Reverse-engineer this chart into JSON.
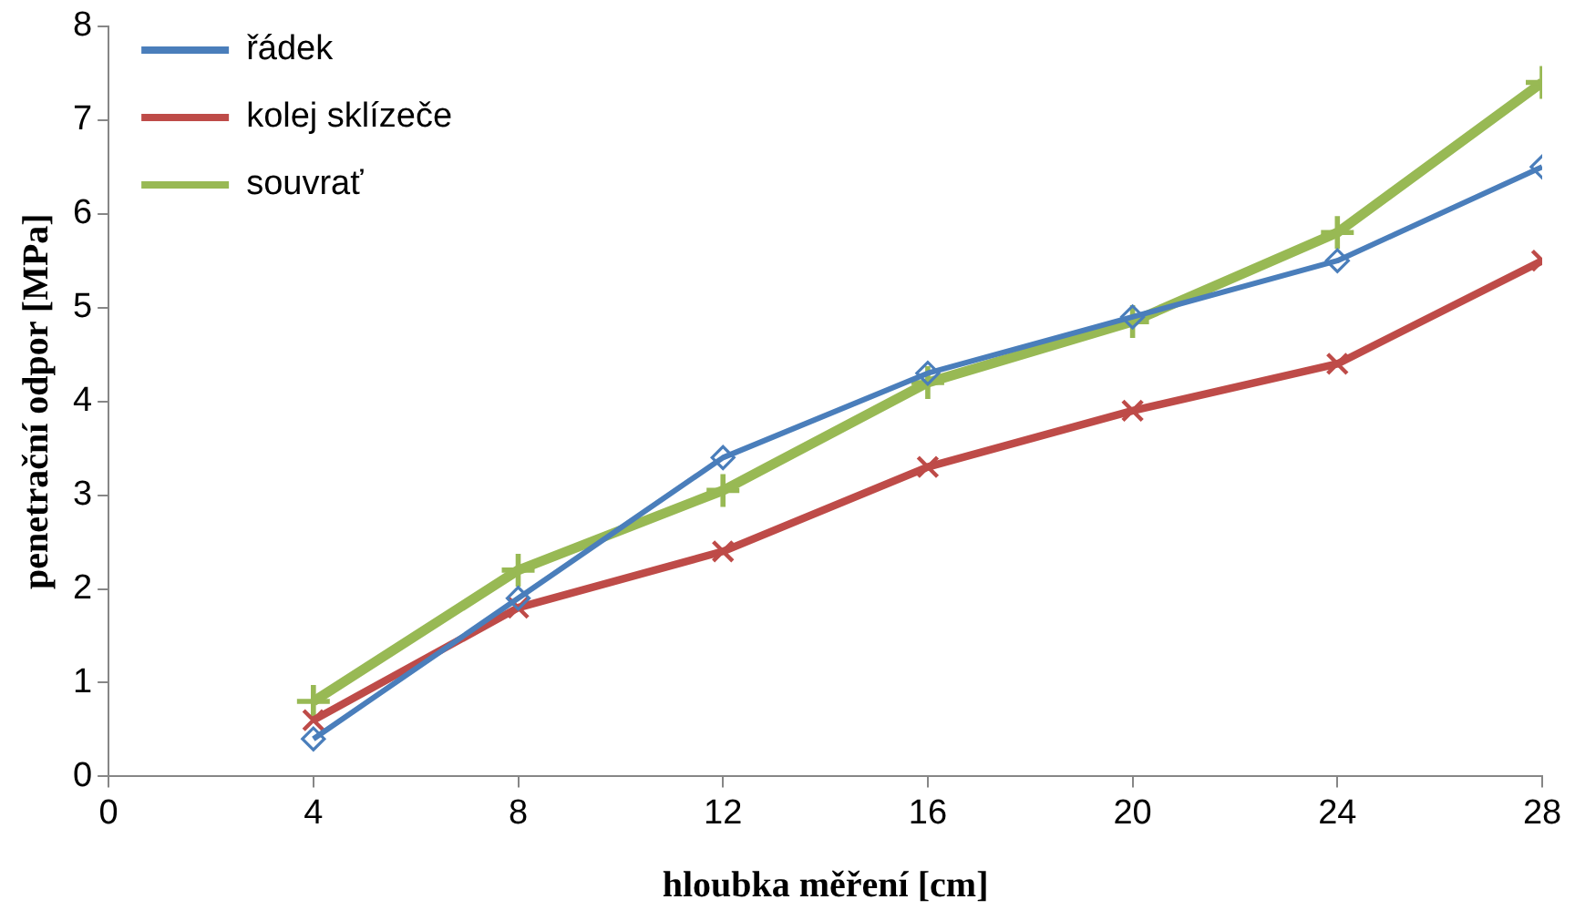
{
  "chart_data": {
    "type": "line",
    "xlabel": "hloubka měření [cm]",
    "ylabel": "penetrační odpor [MPa]",
    "x": [
      4,
      8,
      12,
      16,
      20,
      24,
      28
    ],
    "series": [
      {
        "name": "řádek",
        "color": "#4a7ebb",
        "marker": "diamond",
        "values": [
          0.4,
          1.9,
          3.4,
          4.3,
          4.9,
          5.5,
          6.5
        ]
      },
      {
        "name": "kolej sklízeče",
        "color": "#be4b48",
        "marker": "cross",
        "values": [
          0.6,
          1.8,
          2.4,
          3.3,
          3.9,
          4.4,
          5.5
        ]
      },
      {
        "name": "souvrať",
        "color": "#98b954",
        "marker": "plus",
        "values": [
          0.8,
          2.2,
          3.05,
          4.2,
          4.85,
          5.8,
          7.4
        ]
      }
    ],
    "xlim": [
      0,
      28
    ],
    "xticks": [
      0,
      4,
      8,
      12,
      16,
      20,
      24,
      28
    ],
    "ylim": [
      0,
      8
    ],
    "yticks": [
      0,
      1,
      2,
      3,
      4,
      5,
      6,
      7,
      8
    ],
    "grid": false,
    "legend": "top left"
  }
}
